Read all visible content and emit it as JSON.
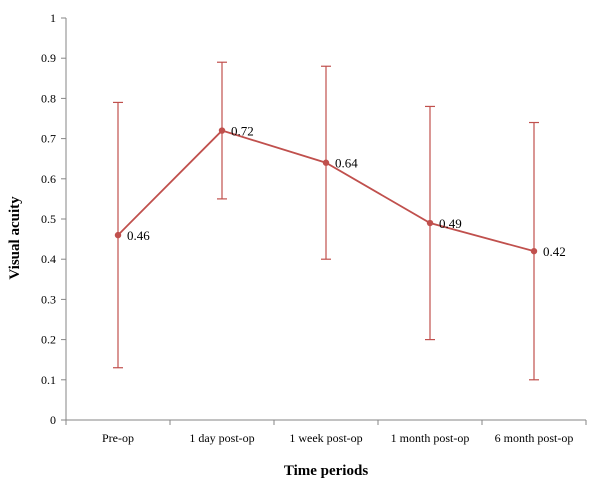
{
  "chart_data": {
    "type": "line",
    "title": "",
    "xlabel": "Time periods",
    "ylabel": "Visual acuity",
    "ylim": [
      0,
      1
    ],
    "yticks": [
      "0",
      "0.1",
      "0.2",
      "0.3",
      "0.4",
      "0.5",
      "0.6",
      "0.7",
      "0.8",
      "0.9",
      "1"
    ],
    "categories": [
      "Pre-op",
      "1 day post-op",
      "1 week post-op",
      "1 month post-op",
      "6 month post-op"
    ],
    "series": [
      {
        "values": [
          0.46,
          0.72,
          0.64,
          0.49,
          0.42
        ],
        "labels": [
          "0.46",
          "0.72",
          "0.64",
          "0.49",
          "0.42"
        ],
        "error_low": [
          0.13,
          0.55,
          0.4,
          0.2,
          0.1
        ],
        "error_high": [
          0.79,
          0.89,
          0.88,
          0.78,
          0.74
        ],
        "color": "#c0504d"
      }
    ],
    "grid": false,
    "legend": "none"
  }
}
